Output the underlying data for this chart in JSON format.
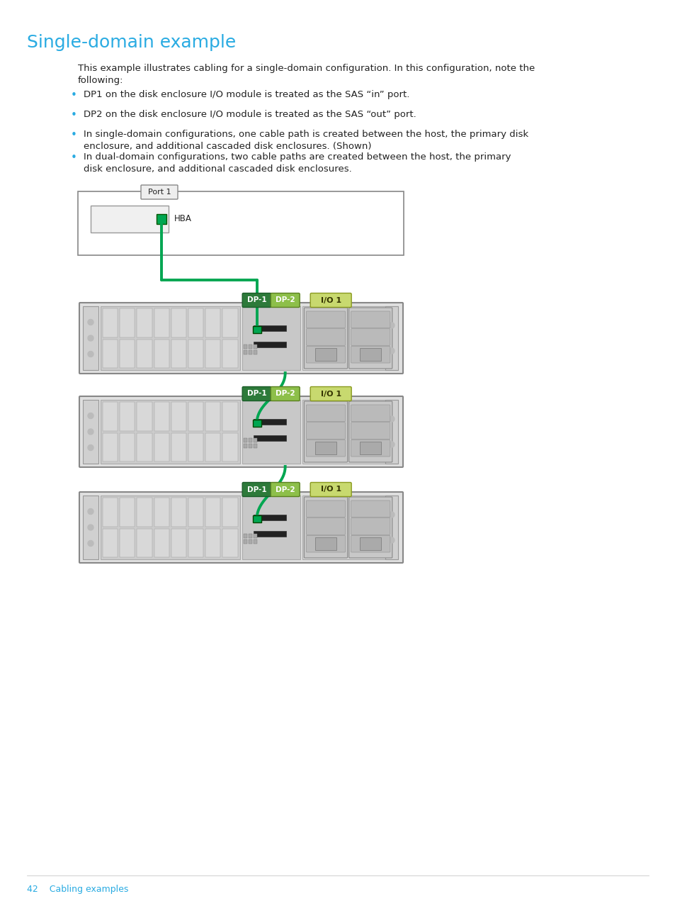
{
  "title": "Single-domain example",
  "title_color": "#29ABE2",
  "title_fontsize": 18,
  "body_text_line1": "This example illustrates cabling for a single-domain configuration. In this configuration, note the",
  "body_text_line2": "following:",
  "bullets": [
    "DP1 on the disk enclosure I/O module is treated as the SAS “in” port.",
    "DP2 on the disk enclosure I/O module is treated as the SAS “out” port.",
    "In single-domain configurations, one cable path is created between the host, the primary disk\n    enclosure, and additional cascaded disk enclosures. (Shown)",
    "In dual-domain configurations, two cable paths are created between the host, the primary\n    disk enclosure, and additional cascaded disk enclosures."
  ],
  "bullet_color": "#29ABE2",
  "text_color": "#222222",
  "background_color": "#ffffff",
  "footer_text": "42    Cabling examples",
  "footer_color": "#29ABE2",
  "green_cable_color": "#00A651",
  "dp1_dark_color": "#2D7A3A",
  "dp1_light_color": "#5BA05A",
  "dp2_color": "#8DBF4A",
  "io1_color": "#C8D96F",
  "enclosure_outer_color": "#AAAAAA",
  "enclosure_body_color": "#DEDEDE",
  "drives_area_color": "#CCCCCC",
  "io_module_color": "#D5D5D5",
  "psu_color": "#D0D0D0"
}
